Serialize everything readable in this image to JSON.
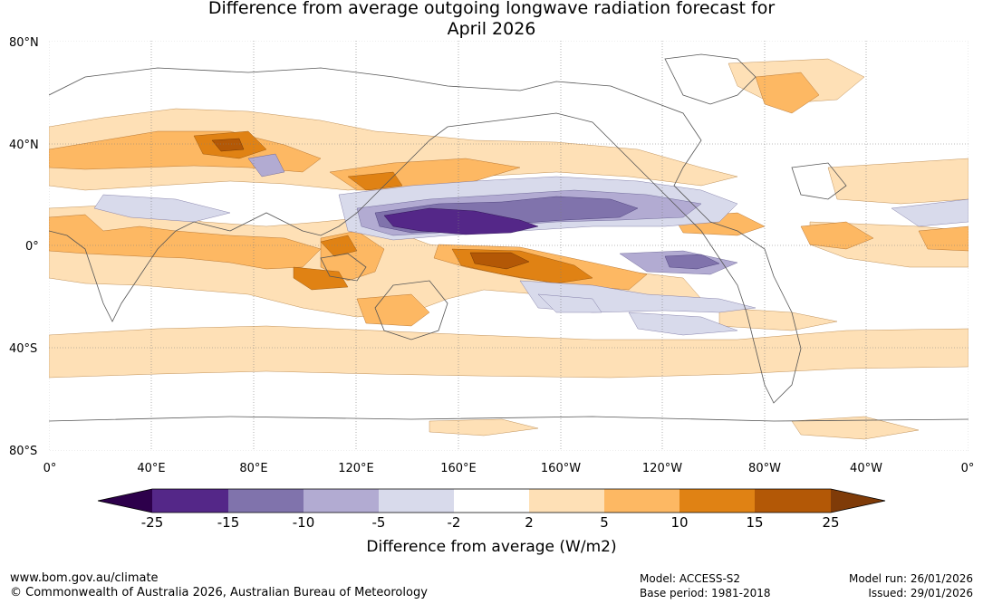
{
  "title_line1": "Difference from average outgoing longwave radiation forecast for",
  "title_line2": "April 2026",
  "lat_labels": [
    "80°N",
    "40°N",
    "0°",
    "40°S",
    "80°S"
  ],
  "lon_labels": [
    "0°",
    "40°E",
    "80°E",
    "120°E",
    "160°E",
    "160°W",
    "120°W",
    "80°W",
    "40°W",
    "0°"
  ],
  "colorbar": {
    "levels": [
      "-25",
      "-15",
      "-10",
      "-5",
      "-2",
      "2",
      "5",
      "10",
      "15",
      "25"
    ],
    "colors": [
      "#2d004b",
      "#542788",
      "#8073ac",
      "#b2abd2",
      "#d8daeb",
      "#ffffff",
      "#fee0b6",
      "#fdb863",
      "#e08214",
      "#b35806",
      "#7f3b08"
    ],
    "label": "Difference from average (W/m2)"
  },
  "footer": {
    "url": "www.bom.gov.au/climate",
    "copyright": "© Commonwealth of Australia 2026, Australian Bureau of Meteorology",
    "model": "Model: ACCESS-S2",
    "base_period": "Base period: 1981-2018",
    "model_run": "Model run: 26/01/2026",
    "issued": "Issued: 29/01/2026"
  }
}
